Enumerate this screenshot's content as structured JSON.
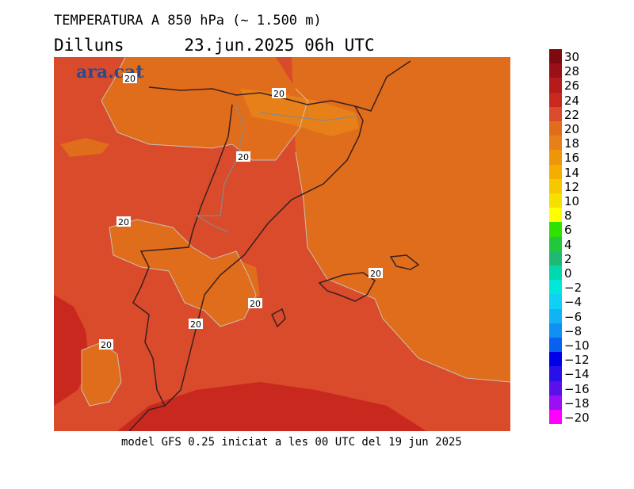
{
  "header": {
    "title": "TEMPERATURA A 850 hPa (~ 1.500 m)",
    "day": "Dilluns",
    "datetime": "23.jun.2025 06h UTC"
  },
  "footer": {
    "model": "model GFS 0.25 iniciat a les 00 UTC del 19 jun 2025"
  },
  "logo": {
    "text": "ara.cat"
  },
  "map": {
    "contour_value": "20",
    "contour_labels": [
      "20",
      "20",
      "20",
      "20",
      "20",
      "20",
      "20",
      "20"
    ],
    "colors": {
      "warm_22": "#d94b2b",
      "mid_20": "#e06d1c",
      "cool_18": "#e8801a",
      "hot_24": "#c8281e"
    }
  },
  "legend": {
    "labels": [
      "30",
      "28",
      "26",
      "24",
      "22",
      "20",
      "18",
      "16",
      "14",
      "12",
      "10",
      "8",
      "6",
      "4",
      "2",
      "0",
      "-2",
      "-4",
      "-6",
      "-8",
      "-10",
      "-12",
      "-14",
      "-16",
      "-18",
      "-20"
    ],
    "colors": [
      "#7e0a10",
      "#9b1018",
      "#b51b1c",
      "#c8281e",
      "#d94b2b",
      "#e06d1c",
      "#e8801a",
      "#ee9608",
      "#f4ae00",
      "#f6c800",
      "#f5e000",
      "#ffff00",
      "#30e000",
      "#20c83c",
      "#20b872",
      "#00d8b0",
      "#00e8dc",
      "#10d0f4",
      "#10b4f4",
      "#1090f0",
      "#0a60f0",
      "#0000e8",
      "#2a10e8",
      "#5a10e8",
      "#9a10f4",
      "#ff00ff"
    ]
  }
}
